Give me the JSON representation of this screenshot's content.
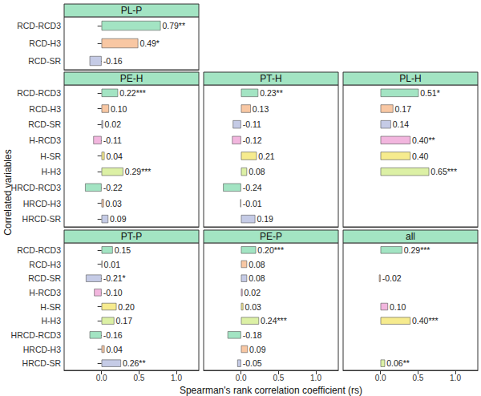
{
  "chart_data": {
    "type": "bar",
    "orientation": "horizontal",
    "xlabel": "Spearman's rank correlation coefficient (rs)",
    "ylabel": "Correlated variables",
    "xlim": [
      -0.5,
      1.3
    ],
    "xticks": [
      {
        "value": 0,
        "label": "0.0"
      },
      {
        "value": 0.5,
        "label": "0.5"
      },
      {
        "value": 1,
        "label": "1.0"
      }
    ],
    "grid": false,
    "data_labels": true,
    "panels": [
      {
        "title": "PL-P",
        "categories": [
          "RCD-RCD3",
          "RCD-H3",
          "RCD-SR"
        ],
        "values": [
          0.79,
          0.49,
          -0.16
        ],
        "value_labels": [
          "0.79**",
          "0.49*",
          "-0.16"
        ],
        "colors": [
          "#a3e4c3",
          "#f8c7a3",
          "#c5cbe6"
        ]
      },
      {
        "title": "PE-H",
        "categories": [
          "RCD-RCD3",
          "RCD-H3",
          "RCD-SR",
          "H-RCD3",
          "H-SR",
          "H-H3",
          "HRCD-RCD3",
          "HRCD-H3",
          "HRCD-SR"
        ],
        "values": [
          0.22,
          0.1,
          0.02,
          -0.11,
          0.04,
          0.29,
          -0.22,
          0.03,
          0.09
        ],
        "value_labels": [
          "0.22***",
          "0.10",
          "0.02",
          "-0.11",
          "0.04",
          "0.29***",
          "-0.22",
          "0.03",
          "0.09"
        ],
        "colors": [
          "#a3e4c3",
          "#f8c7a3",
          "#c5cbe6",
          "#f2b6de",
          "#f6eb8e",
          "#dcf0a5",
          "#a3e4c3",
          "#f8c7a3",
          "#c5cbe6"
        ]
      },
      {
        "title": "PT-H",
        "categories": [
          "RCD-RCD3",
          "RCD-H3",
          "RCD-SR",
          "H-RCD3",
          "H-SR",
          "H-H3",
          "HRCD-RCD3",
          "HRCD-H3",
          "HRCD-SR"
        ],
        "values": [
          0.23,
          0.13,
          -0.11,
          -0.12,
          0.21,
          0.08,
          -0.24,
          -0.01,
          0.19
        ],
        "value_labels": [
          "0.23**",
          "0.13",
          "-0.11",
          "-0.12",
          "0.21",
          "0.08",
          "-0.24",
          "-0.01",
          "0.19"
        ],
        "colors": [
          "#a3e4c3",
          "#f8c7a3",
          "#c5cbe6",
          "#f2b6de",
          "#f6eb8e",
          "#dcf0a5",
          "#a3e4c3",
          "#f8c7a3",
          "#c5cbe6"
        ]
      },
      {
        "title": "PL-H",
        "categories": [
          "RCD-RCD3",
          "RCD-H3",
          "RCD-SR",
          "H-RCD3",
          "H-SR",
          "H-H3",
          "HRCD-RCD3",
          "HRCD-H3",
          "HRCD-SR"
        ],
        "values": [
          0.51,
          0.17,
          0.14,
          0.4,
          0.4,
          0.65,
          null,
          null,
          null
        ],
        "value_labels": [
          "0.51*",
          "0.17",
          "0.14",
          "0.40**",
          "0.40",
          "0.65***",
          null,
          null,
          null
        ],
        "colors": [
          "#a3e4c3",
          "#f8c7a3",
          "#c5cbe6",
          "#f2b6de",
          "#f6eb8e",
          "#dcf0a5",
          null,
          null,
          null
        ]
      },
      {
        "title": "PT-P",
        "categories": [
          "RCD-RCD3",
          "RCD-H3",
          "RCD-SR",
          "H-RCD3",
          "H-SR",
          "H-H3",
          "HRCD-RCD3",
          "HRCD-H3",
          "HRCD-SR"
        ],
        "values": [
          0.15,
          0.01,
          -0.21,
          -0.1,
          0.2,
          0.17,
          -0.16,
          0.04,
          0.26
        ],
        "value_labels": [
          "0.15",
          "0.01",
          "-0.21*",
          "-0.10",
          "0.20",
          "0.17",
          "-0.16",
          "0.04",
          "0.26**"
        ],
        "colors": [
          "#a3e4c3",
          "#f8c7a3",
          "#c5cbe6",
          "#f2b6de",
          "#f6eb8e",
          "#dcf0a5",
          "#a3e4c3",
          "#f8c7a3",
          "#c5cbe6"
        ]
      },
      {
        "title": "PE-P",
        "categories": [
          "RCD-RCD3",
          "RCD-H3",
          "RCD-SR",
          "H-RCD3",
          "H-SR",
          "H-H3",
          "HRCD-RCD3",
          "HRCD-H3",
          "HRCD-SR"
        ],
        "values": [
          0.2,
          0.08,
          0.08,
          0.02,
          0.03,
          0.24,
          -0.18,
          0.09,
          -0.05
        ],
        "value_labels": [
          "0.20***",
          "0.08",
          "0.08",
          "0.02",
          "0.03",
          "0.24***",
          "-0.18",
          "0.09",
          "-0.05"
        ],
        "colors": [
          "#a3e4c3",
          "#f8c7a3",
          "#c5cbe6",
          "#f2b6de",
          "#f6eb8e",
          "#dcf0a5",
          "#a3e4c3",
          "#f8c7a3",
          "#c5cbe6"
        ]
      },
      {
        "title": "all",
        "categories": [
          "RCD-RCD3",
          "RCD-H3",
          "RCD-SR",
          "H-RCD3",
          "H-SR",
          "H-H3",
          "HRCD-RCD3",
          "HRCD-H3",
          "HRCD-SR"
        ],
        "values": [
          0.29,
          null,
          -0.02,
          null,
          0.1,
          0.4,
          null,
          null,
          0.06
        ],
        "value_labels": [
          "0.29***",
          null,
          "-0.02",
          null,
          "0.10",
          "0.40***",
          null,
          null,
          "0.06**"
        ],
        "colors": [
          "#a3e4c3",
          null,
          "#f8c7a3",
          null,
          "#f2b6de",
          "#f6eb8e",
          null,
          null,
          "#dcf0a5"
        ]
      }
    ]
  }
}
